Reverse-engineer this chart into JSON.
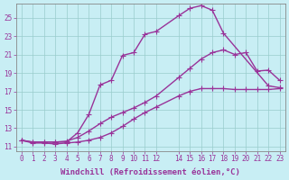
{
  "xlabel": "Windchill (Refroidissement éolien,°C)",
  "bg_color": "#c8eef4",
  "line_color": "#993399",
  "grid_color": "#99cccc",
  "xlim": [
    -0.5,
    23.5
  ],
  "ylim": [
    10.5,
    26.5
  ],
  "xticks": [
    0,
    1,
    2,
    3,
    4,
    5,
    6,
    7,
    8,
    9,
    10,
    11,
    12,
    14,
    15,
    16,
    17,
    18,
    19,
    20,
    21,
    22,
    23
  ],
  "yticks": [
    11,
    13,
    15,
    17,
    19,
    21,
    23,
    25
  ],
  "curve1_x": [
    0,
    1,
    2,
    3,
    4,
    5,
    6,
    7,
    8,
    9,
    10,
    11,
    12,
    14,
    15,
    16,
    17,
    18,
    19,
    20,
    21,
    22,
    23
  ],
  "curve1_y": [
    11.7,
    11.4,
    11.4,
    11.3,
    11.4,
    11.5,
    11.7,
    12.0,
    12.5,
    13.2,
    14.0,
    14.7,
    15.3,
    16.5,
    17.0,
    17.3,
    17.3,
    17.3,
    17.2,
    17.2,
    17.2,
    17.2,
    17.3
  ],
  "curve2_x": [
    0,
    1,
    2,
    3,
    4,
    5,
    6,
    7,
    8,
    9,
    10,
    11,
    12,
    14,
    15,
    16,
    17,
    18,
    19,
    20,
    21,
    22,
    23
  ],
  "curve2_y": [
    11.7,
    11.5,
    11.5,
    11.5,
    11.6,
    12.0,
    12.7,
    13.5,
    14.2,
    14.7,
    15.2,
    15.8,
    16.5,
    18.5,
    19.5,
    20.5,
    21.2,
    21.5,
    21.0,
    21.2,
    19.2,
    19.3,
    18.2
  ],
  "curve3_x": [
    0,
    1,
    2,
    3,
    4,
    5,
    6,
    7,
    8,
    9,
    10,
    11,
    12,
    14,
    15,
    16,
    17,
    18,
    22,
    23
  ],
  "curve3_y": [
    11.7,
    11.5,
    11.5,
    11.5,
    11.5,
    12.5,
    14.5,
    17.7,
    18.2,
    20.9,
    21.2,
    23.2,
    23.5,
    25.2,
    26.0,
    26.3,
    25.8,
    23.3,
    17.6,
    17.4
  ],
  "marker": "+",
  "markersize": 4,
  "linewidth": 1.0,
  "tick_fontsize": 5.5,
  "label_fontsize": 6.5
}
